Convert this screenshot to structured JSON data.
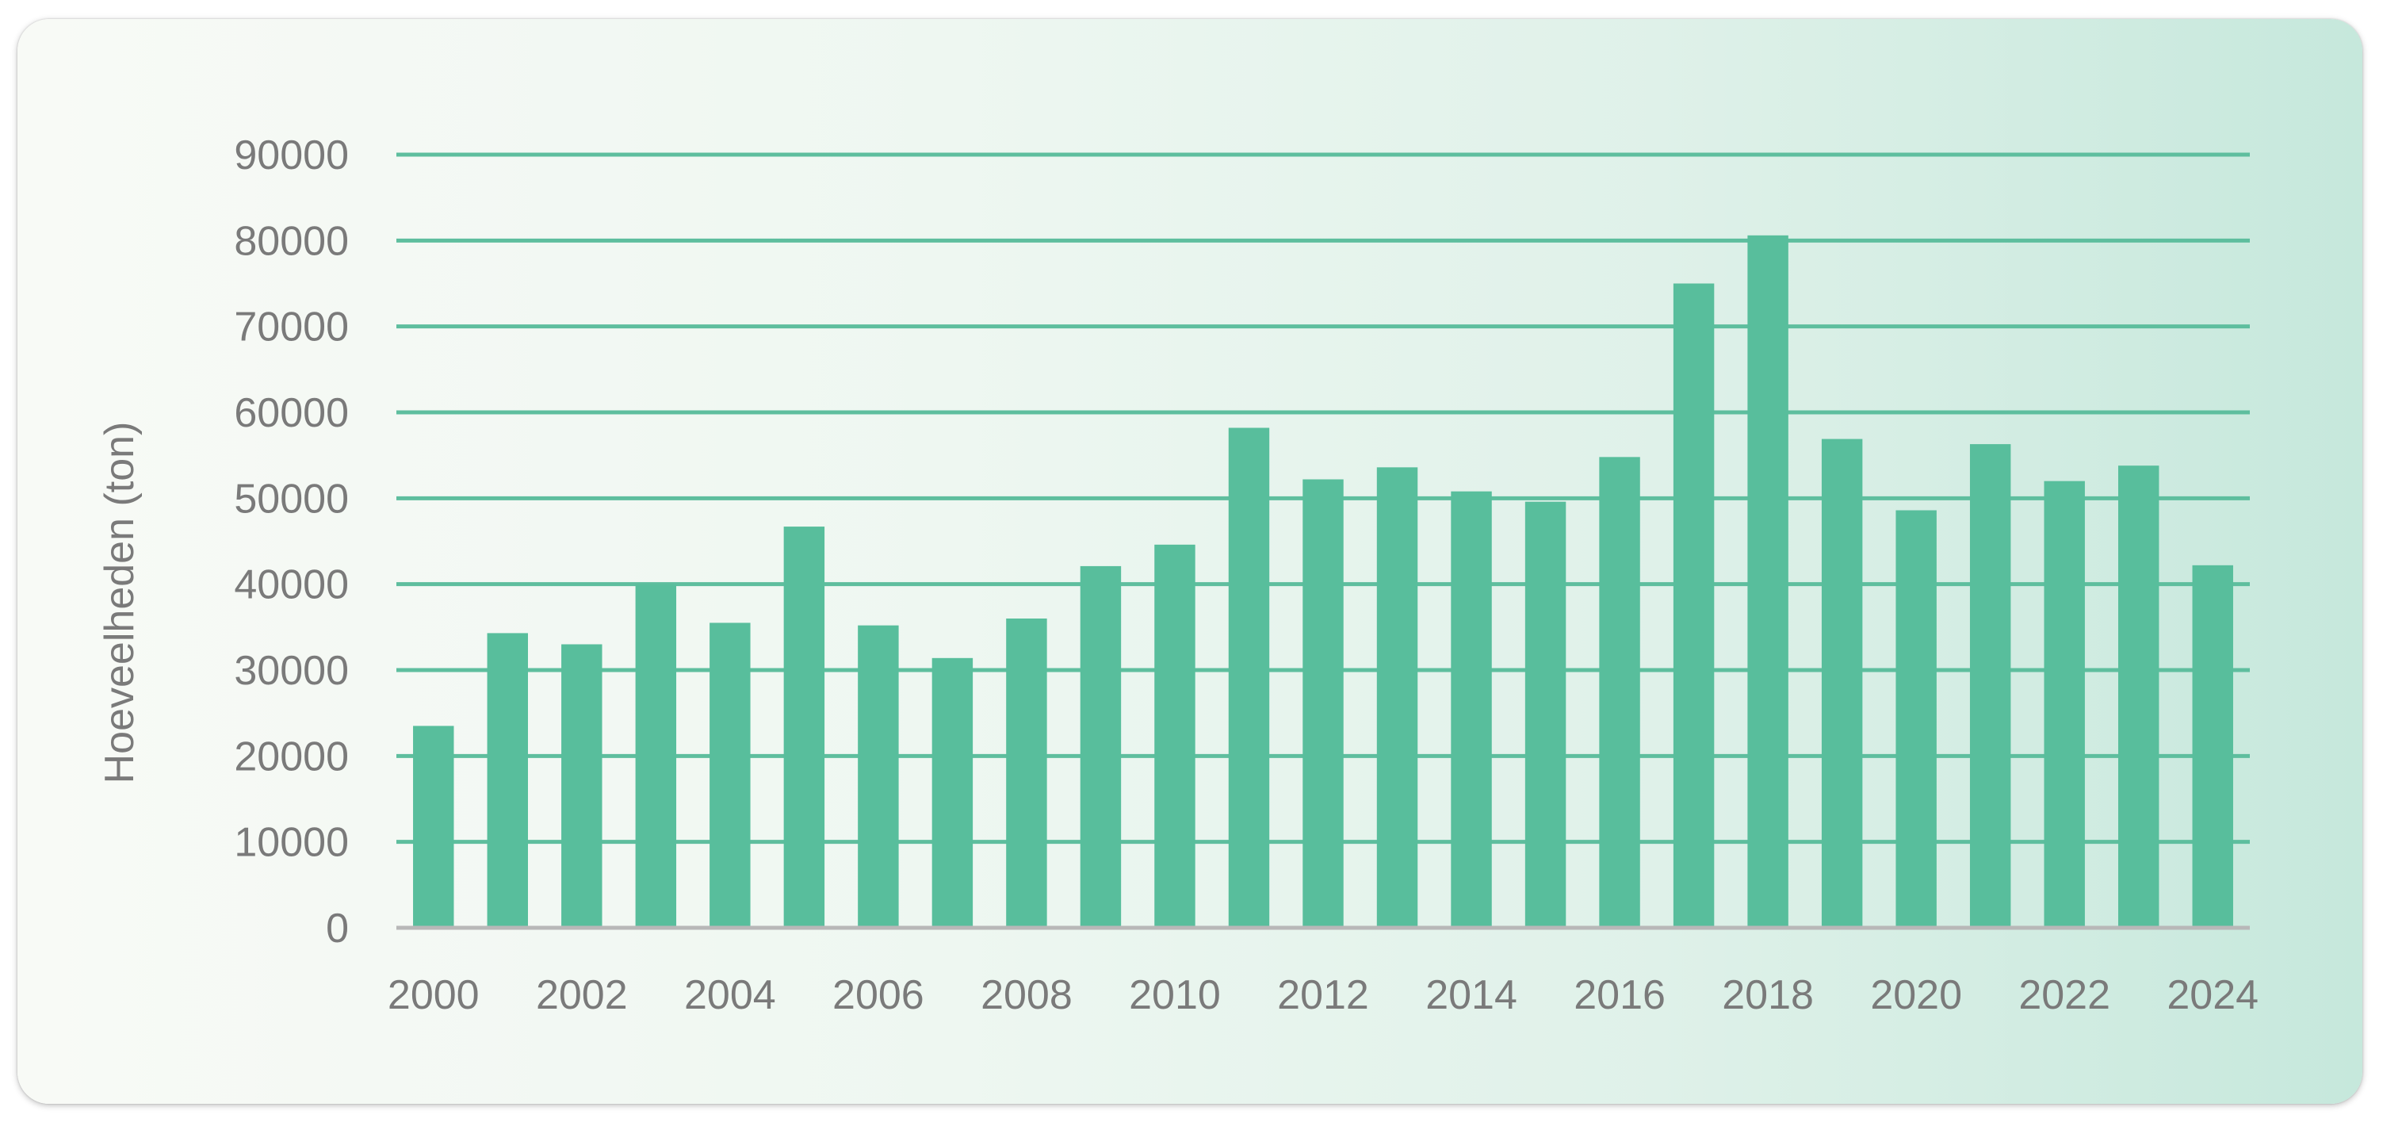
{
  "chart_data": {
    "type": "bar",
    "title": "",
    "xlabel": "",
    "ylabel": "Hoeveelheden (ton)",
    "ylim": [
      0,
      90000
    ],
    "yticks": [
      0,
      10000,
      20000,
      30000,
      40000,
      50000,
      60000,
      70000,
      80000,
      90000
    ],
    "grid": true,
    "categories": [
      "2000",
      "2001",
      "2002",
      "2003",
      "2004",
      "2005",
      "2006",
      "2007",
      "2008",
      "2009",
      "2010",
      "2011",
      "2012",
      "2013",
      "2014",
      "2015",
      "2016",
      "2017",
      "2018",
      "2019",
      "2020",
      "2021",
      "2022",
      "2023",
      "2024"
    ],
    "x_tick_labels": [
      "2000",
      "2002",
      "2004",
      "2006",
      "2008",
      "2010",
      "2012",
      "2014",
      "2016",
      "2018",
      "2020",
      "2022",
      "2024"
    ],
    "values": [
      23500,
      34300,
      33000,
      40000,
      35500,
      46700,
      35200,
      31400,
      36000,
      42100,
      44600,
      58200,
      52200,
      53600,
      50800,
      49600,
      54800,
      75000,
      80600,
      56900,
      48600,
      56300,
      52000,
      53800,
      42200
    ],
    "colors": {
      "bar": "#58be9c",
      "grid": "#5ebe9e",
      "baseline": "#b8b8b8",
      "text": "#7a7a7a"
    }
  }
}
